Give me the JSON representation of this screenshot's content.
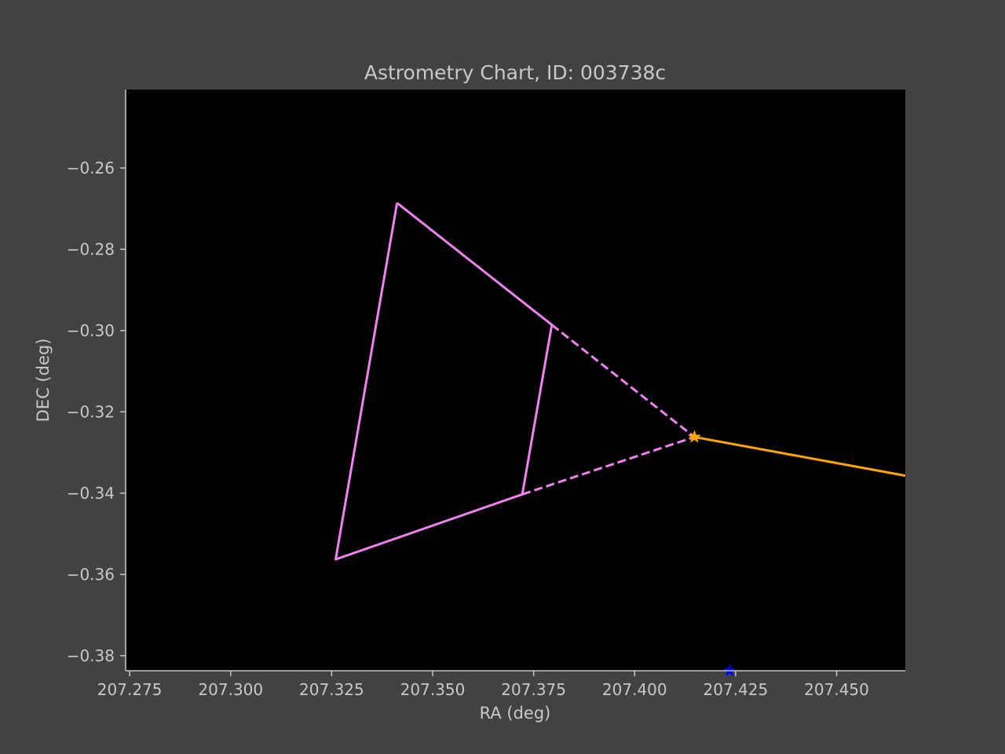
{
  "chart_data": {
    "type": "line",
    "title": "Astrometry Chart, ID: 003738c",
    "xlabel": "RA (deg)",
    "ylabel": "DEC (deg)",
    "xlim": [
      207.274,
      207.467
    ],
    "ylim": [
      -0.3837,
      -0.2407
    ],
    "xticks": [
      207.275,
      207.3,
      207.325,
      207.35,
      207.375,
      207.4,
      207.425,
      207.45
    ],
    "xtick_labels": [
      "207.275",
      "207.300",
      "207.325",
      "207.350",
      "207.375",
      "207.400",
      "207.425",
      "207.450"
    ],
    "yticks": [
      -0.26,
      -0.28,
      -0.3,
      -0.32,
      -0.34,
      -0.36,
      -0.38
    ],
    "ytick_labels": [
      "−0.26",
      "−0.28",
      "−0.30",
      "−0.32",
      "−0.34",
      "−0.36",
      "−0.38"
    ],
    "grid": false,
    "background": "#000000",
    "series": [
      {
        "style": "solid",
        "color": "#ee82ee",
        "x": [
          207.3412,
          207.326,
          207.3722,
          207.3795,
          207.3412
        ],
        "y": [
          -0.2686,
          -0.3563,
          -0.3403,
          -0.2986,
          -0.2686
        ]
      },
      {
        "style": "dashed",
        "color": "#ee82ee",
        "x": [
          207.3795,
          207.4148
        ],
        "y": [
          -0.2986,
          -0.3262
        ]
      },
      {
        "style": "dashed",
        "color": "#ee82ee",
        "x": [
          207.3722,
          207.4148
        ],
        "y": [
          -0.3403,
          -0.3262
        ]
      },
      {
        "style": "solid",
        "color": "#ffa500",
        "x": [
          207.4148,
          207.467
        ],
        "y": [
          -0.3262,
          -0.3357
        ]
      }
    ],
    "markers": [
      {
        "shape": "star",
        "color": "#ffa500",
        "x": 207.4148,
        "y": -0.3262
      },
      {
        "shape": "star",
        "color": "#0000ff",
        "x": 207.4235,
        "y": -0.3837
      }
    ]
  }
}
